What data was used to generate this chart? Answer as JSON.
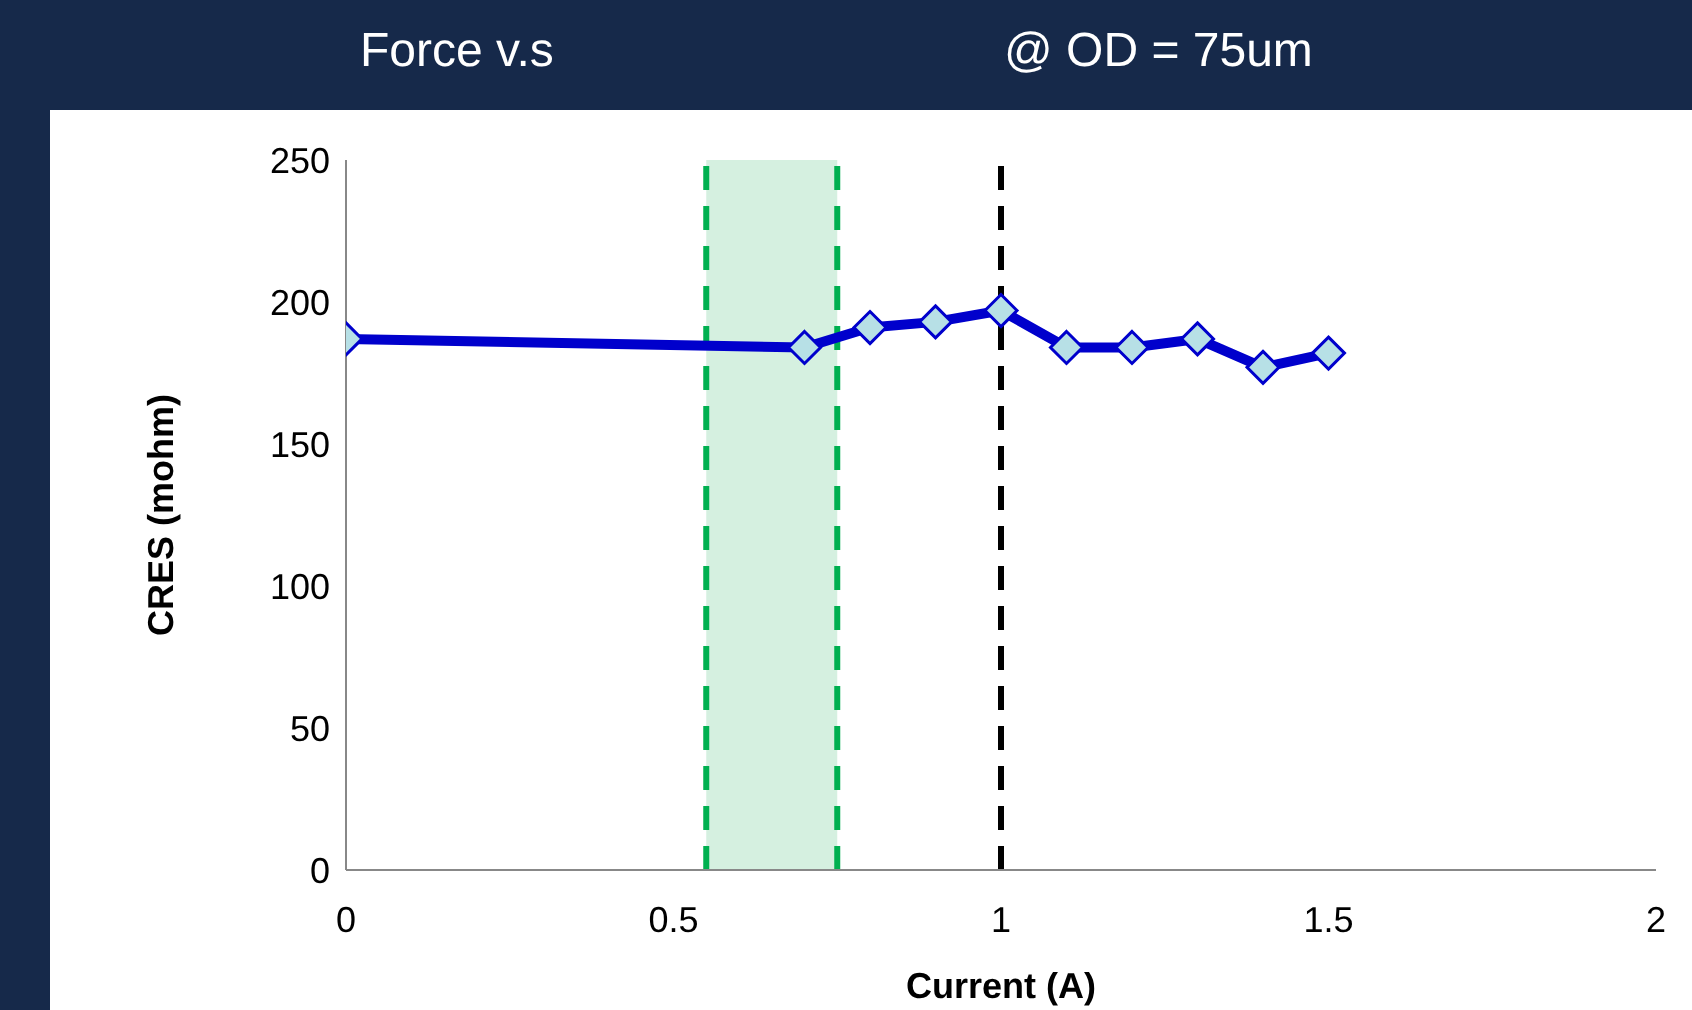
{
  "chart_data": {
    "type": "line",
    "title": "Force v.s",
    "subtitle": "@ OD = 75um",
    "xlabel": "Current (A)",
    "ylabel": "CRES (mohm)",
    "x": [
      0,
      0.7,
      0.8,
      0.9,
      1.0,
      1.1,
      1.2,
      1.3,
      1.4,
      1.5
    ],
    "series": [
      {
        "color": "#0000cc",
        "values": [
          187,
          184,
          191,
          193,
          197,
          184,
          184,
          187,
          177,
          182
        ]
      }
    ],
    "xlim": [
      0,
      2
    ],
    "xticks": [
      0,
      0.5,
      1,
      1.5,
      2
    ],
    "ylim": [
      0,
      250
    ],
    "yticks": [
      0,
      50,
      100,
      150,
      200,
      250
    ],
    "bands": [
      {
        "axis": "x",
        "from": 0.55,
        "to": 0.75,
        "color": "#d5f0e0"
      }
    ],
    "ref_lines": [
      {
        "axis": "x",
        "value": 0.55,
        "color": "#00b050",
        "line_style": "dashed"
      },
      {
        "axis": "x",
        "value": 0.75,
        "color": "#00b050",
        "line_style": "dashed"
      },
      {
        "axis": "x",
        "value": 1.0,
        "color": "#000000",
        "line_style": "dashed"
      }
    ],
    "marker": "diamond",
    "line_style": "solid",
    "grid": false,
    "legend": false
  }
}
